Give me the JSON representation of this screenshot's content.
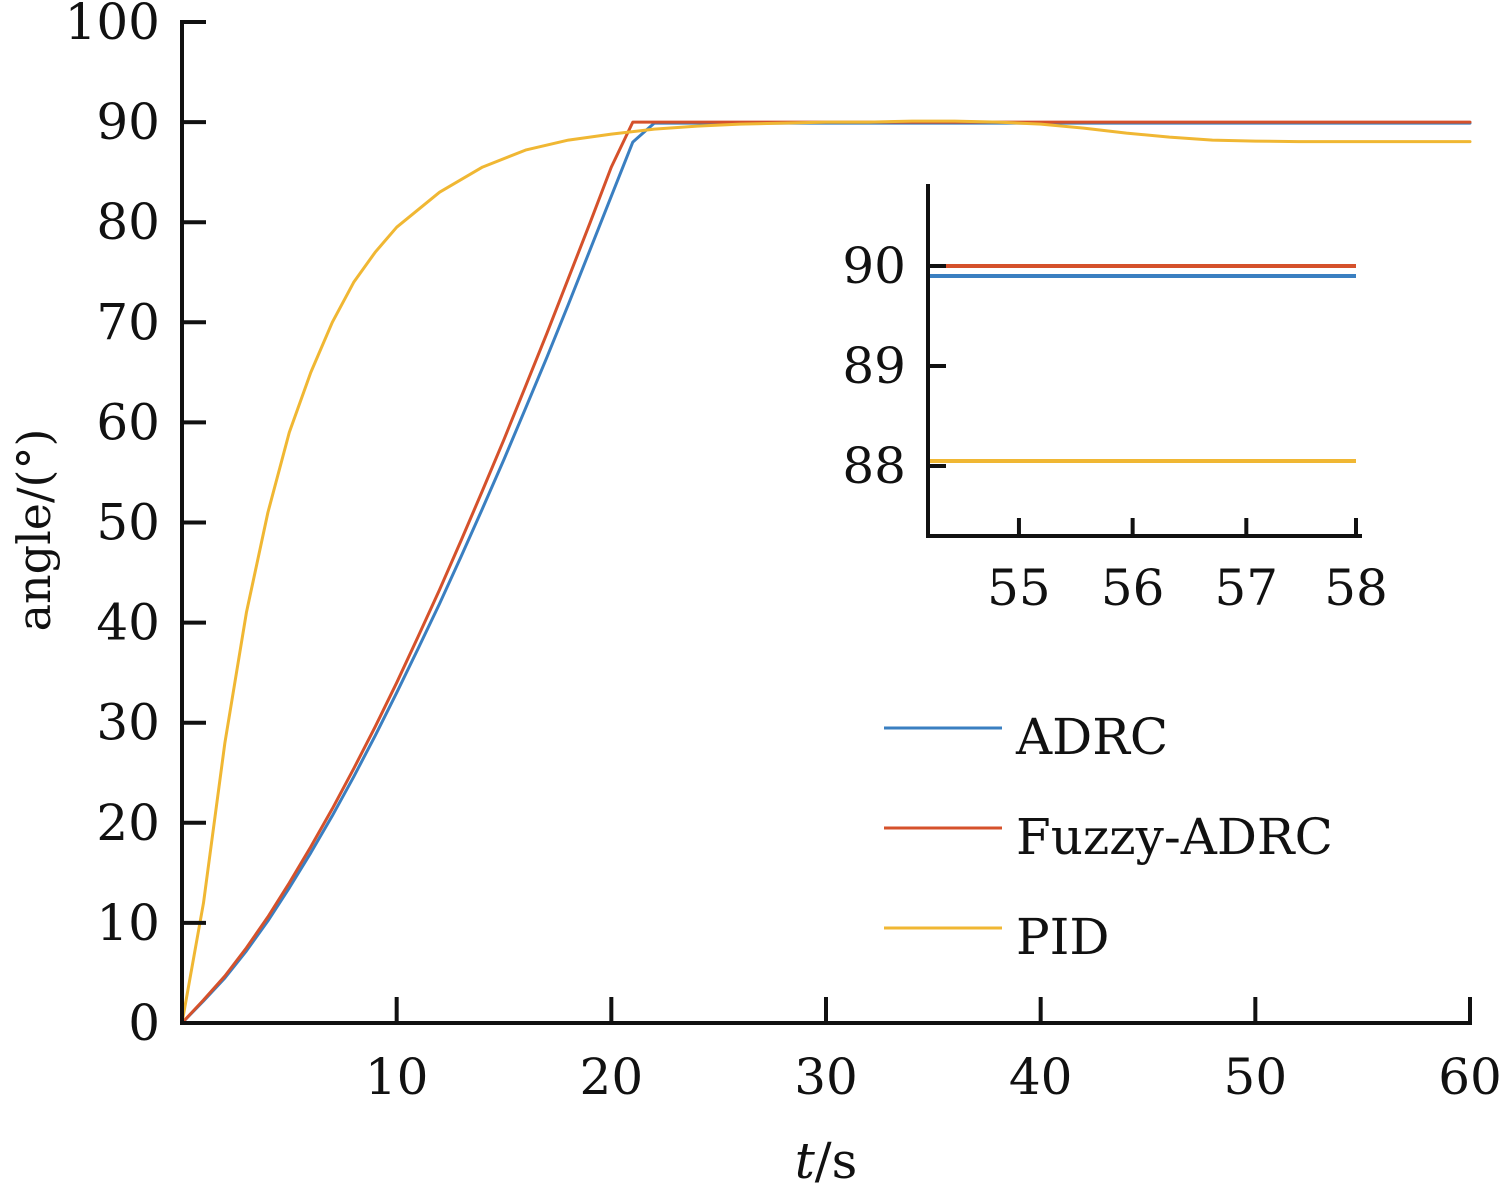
{
  "chart_data": [
    {
      "type": "line",
      "title": "",
      "xlabel_italic": "t",
      "xlabel_rest": "/s",
      "ylabel": "angle/(°)",
      "xlim": [
        0,
        60
      ],
      "ylim": [
        0,
        100
      ],
      "xticks": [
        10,
        20,
        30,
        40,
        50,
        60
      ],
      "yticks": [
        0,
        10,
        20,
        30,
        40,
        50,
        60,
        70,
        80,
        90,
        100
      ],
      "grid": false,
      "legend_position": "bottom-right",
      "series": [
        {
          "name": "ADRC",
          "color": "#3a7fc1",
          "x": [
            0,
            1,
            2,
            3,
            4,
            5,
            6,
            7,
            8,
            9,
            10,
            11,
            12,
            13,
            14,
            15,
            16,
            17,
            18,
            19,
            20,
            21,
            22,
            23,
            24,
            24.9,
            25,
            30,
            40,
            50,
            60
          ],
          "y": [
            0,
            2.2,
            4.5,
            7.2,
            10.2,
            13.5,
            17.0,
            20.7,
            24.6,
            28.7,
            33.0,
            37.4,
            41.9,
            46.6,
            51.4,
            56.3,
            61.4,
            66.5,
            71.8,
            77.2,
            82.6,
            88.0,
            89.9,
            89.9,
            89.9,
            89.9,
            89.9,
            89.9,
            89.9,
            89.9,
            89.9
          ],
          "y_note_removed": true
        },
        {
          "name": "Fuzzy-ADRC",
          "color": "#d5512b",
          "x": [
            0,
            1,
            2,
            3,
            4,
            5,
            6,
            7,
            8,
            9,
            10,
            11,
            12,
            13,
            14,
            15,
            16,
            17,
            18,
            19,
            20,
            21,
            22,
            23,
            24,
            24.3,
            25,
            30,
            40,
            50,
            60
          ],
          "y": [
            0,
            2.3,
            4.7,
            7.5,
            10.6,
            14.0,
            17.6,
            21.4,
            25.4,
            29.6,
            34.0,
            38.6,
            43.3,
            48.2,
            53.2,
            58.3,
            63.6,
            68.9,
            74.4,
            79.9,
            85.5,
            90.0,
            90.0,
            90.0,
            90.0,
            90.0,
            90.0,
            90.0,
            90.0,
            90.0,
            90.0
          ]
        },
        {
          "name": "PID",
          "color": "#f0b733",
          "x": [
            0,
            1,
            2,
            3,
            4,
            5,
            6,
            7,
            8,
            9,
            10,
            12,
            14,
            16,
            18,
            20,
            22,
            24,
            26,
            28,
            30,
            32,
            34,
            36,
            38,
            40,
            42,
            44,
            46,
            48,
            50,
            52,
            55,
            58,
            60
          ],
          "y": [
            0,
            12,
            28,
            41,
            51,
            59,
            65,
            70,
            74,
            77,
            79.5,
            83,
            85.5,
            87.2,
            88.2,
            88.8,
            89.3,
            89.6,
            89.8,
            89.9,
            90.0,
            90.0,
            90.1,
            90.1,
            90.0,
            89.8,
            89.4,
            88.9,
            88.5,
            88.2,
            88.1,
            88.05,
            88.05,
            88.05,
            88.05
          ]
        }
      ]
    },
    {
      "type": "line",
      "title": "",
      "inset": true,
      "xlim": [
        54.2,
        58
      ],
      "ylim": [
        87.3,
        90.8
      ],
      "xticks": [
        55,
        56,
        57,
        58
      ],
      "yticks": [
        88,
        89,
        90
      ],
      "grid": false,
      "series": [
        {
          "name": "ADRC",
          "color": "#3a7fc1",
          "x": [
            54.2,
            58
          ],
          "y": [
            89.9,
            89.9
          ]
        },
        {
          "name": "Fuzzy-ADRC",
          "color": "#d5512b",
          "x": [
            54.2,
            58
          ],
          "y": [
            90.0,
            90.0
          ]
        },
        {
          "name": "PID",
          "color": "#f0b733",
          "x": [
            54.2,
            58
          ],
          "y": [
            88.05,
            88.05
          ]
        }
      ]
    }
  ]
}
